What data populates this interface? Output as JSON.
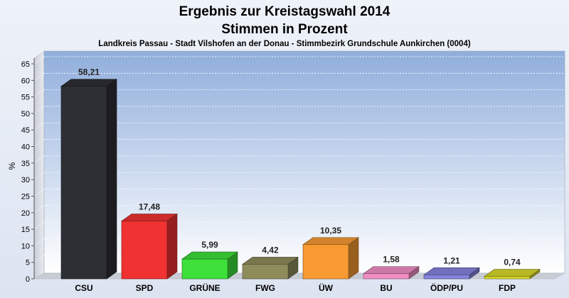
{
  "chart_data": {
    "type": "bar",
    "title": "Ergebnis zur Kreistagswahl 2014",
    "subtitle": "Stimmen in Prozent",
    "caption": "Landkreis Passau - Stadt Vilshofen an der Donau - Stimmbezirk Grundschule Aunkirchen (0004)",
    "ylabel": "%",
    "xlabel": "",
    "ylim": [
      0,
      65
    ],
    "yticks": [
      0,
      5,
      10,
      15,
      20,
      25,
      30,
      35,
      40,
      45,
      50,
      55,
      60,
      65
    ],
    "grid": true,
    "categories": [
      "CSU",
      "SPD",
      "GRÜNE",
      "FWG",
      "ÜW",
      "BU",
      "ÖDP/PU",
      "FDP"
    ],
    "values": [
      58.21,
      17.48,
      5.99,
      4.42,
      10.35,
      1.58,
      1.21,
      0.74
    ],
    "value_labels": [
      "58,21",
      "17,48",
      "5,99",
      "4,42",
      "10,35",
      "1,58",
      "1,21",
      "0,74"
    ],
    "colors": [
      "#2e2f35",
      "#f03232",
      "#3ee03a",
      "#8f8c5c",
      "#f79a32",
      "#f08ec4",
      "#8484de",
      "#d8d82a"
    ]
  }
}
